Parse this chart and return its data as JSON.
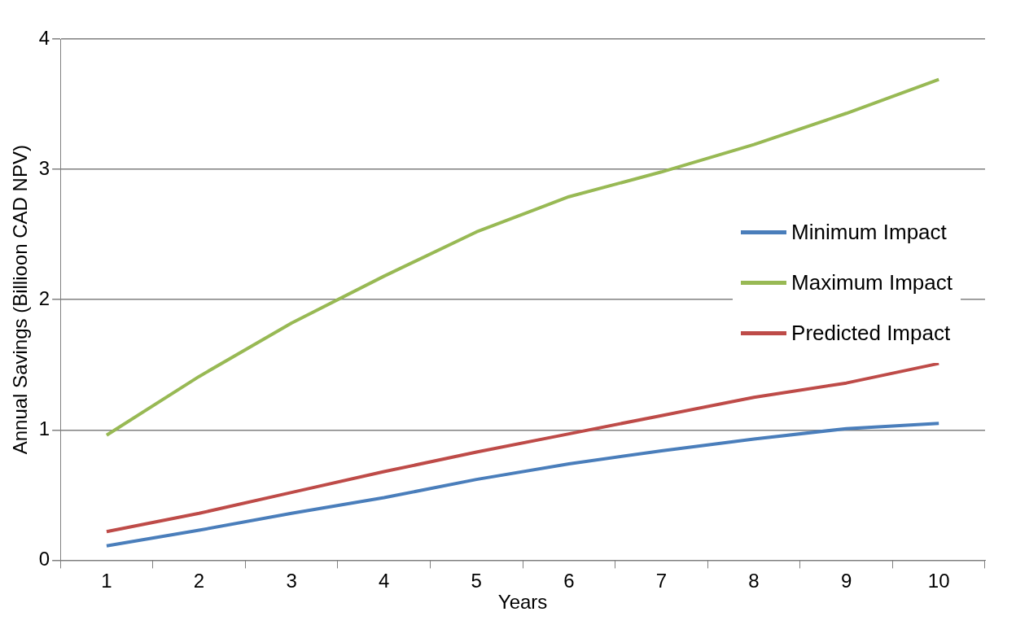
{
  "chart_data": {
    "type": "line",
    "xlabel": "Years",
    "ylabel": "Annual Savings (Billioon CAD NPV)",
    "categories": [
      "1",
      "2",
      "3",
      "4",
      "5",
      "6",
      "7",
      "8",
      "9",
      "10"
    ],
    "series": [
      {
        "name": "Minimum Impact",
        "color": "#4a7ebb",
        "values": [
          0.11,
          0.23,
          0.36,
          0.48,
          0.62,
          0.74,
          0.84,
          0.93,
          1.01,
          1.05
        ]
      },
      {
        "name": "Maximum Impact",
        "color": "#98b954",
        "values": [
          0.96,
          1.41,
          1.82,
          2.18,
          2.52,
          2.79,
          2.98,
          3.19,
          3.43,
          3.69
        ]
      },
      {
        "name": "Predicted Impact",
        "color": "#be4b48",
        "values": [
          0.22,
          0.36,
          0.52,
          0.68,
          0.83,
          0.97,
          1.11,
          1.25,
          1.36,
          1.51
        ]
      }
    ],
    "ylim": [
      0,
      4
    ],
    "yticks": [
      0,
      1,
      2,
      3,
      4
    ],
    "grid": "y",
    "legend": "right",
    "marker": "none",
    "line_style": "solid"
  }
}
